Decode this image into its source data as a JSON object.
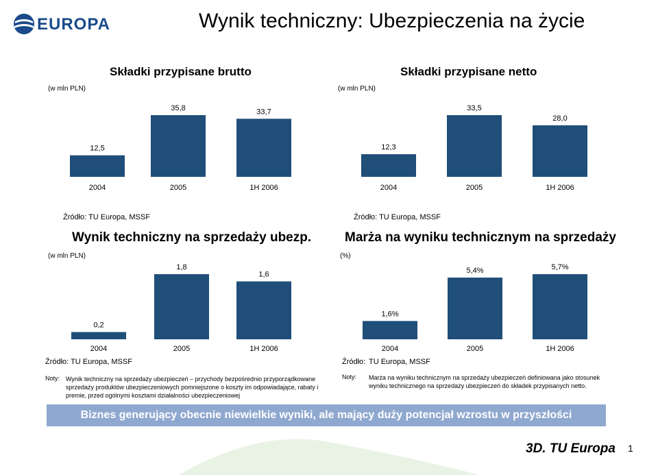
{
  "brand": {
    "name": "EUROPA",
    "color": "#1a4a8a"
  },
  "title": "Wynik techniczny: Ubezpieczenia na życie",
  "charts": [
    {
      "title": "Składki przypisane brutto",
      "unit": "(w mln PLN)",
      "source": "Źródło: TU Europa, MSSF",
      "label_offset": [
        0,
        0,
        0
      ]
    },
    {
      "title": "Składki przypisane netto",
      "unit": "(w mln PLN)",
      "source": "Źródło: TU Europa, MSSF"
    },
    {
      "title": "Wynik techniczny na sprzedaży ubezp.",
      "unit": "(w mln PLN)",
      "source": "Źródło: TU Europa, MSSF"
    },
    {
      "title": "Marża na wyniku technicznym na sprzedaży",
      "unit": "(%)",
      "source_label": "Źródło:",
      "source": "TU Europa, MSSF"
    }
  ],
  "chart_data": [
    {
      "type": "bar",
      "title": "Składki przypisane brutto",
      "unit": "(w mln PLN)",
      "categories": [
        "2004",
        "2005",
        "1H 2006"
      ],
      "values": [
        12.5,
        35.8,
        33.7
      ],
      "value_labels": [
        "12,5",
        "35,8",
        "33,7"
      ],
      "color": "#1f4e79"
    },
    {
      "type": "bar",
      "title": "Składki przypisane netto",
      "unit": "(w mln PLN)",
      "categories": [
        "2004",
        "2005",
        "1H 2006"
      ],
      "values": [
        12.3,
        33.5,
        28.0
      ],
      "value_labels": [
        "12,3",
        "33,5",
        "28,0"
      ],
      "color": "#1f4e79"
    },
    {
      "type": "bar",
      "title": "Wynik techniczny na sprzedaży ubezp.",
      "unit": "(w mln PLN)",
      "categories": [
        "2004",
        "2005",
        "1H 2006"
      ],
      "values": [
        0.2,
        1.8,
        1.6
      ],
      "value_labels": [
        "0,2",
        "1,8",
        "1,6"
      ],
      "color": "#1f4e79"
    },
    {
      "type": "bar",
      "title": "Marża na wyniku technicznym na sprzedaży",
      "unit": "(%)",
      "categories": [
        "2004",
        "2005",
        "1H 2006"
      ],
      "values": [
        1.6,
        5.4,
        5.7
      ],
      "value_labels": [
        "1,6%",
        "5,4%",
        "5,7%"
      ],
      "color": "#1f4e79"
    }
  ],
  "notes": {
    "left_label": "Noty:",
    "left_text": "Wynik techniczny na sprzedaży ubezpieczeń – przychody bezpośrednio przyporządkowane sprzedaży produktów ubezpieczeniowych pomniejszone o koszty im odpowiadające, rabaty i premie, przed ogólnymi kosztami działalności ubezpieczeniowej",
    "right_label": "Noty:",
    "right_text": "Marża na wyniku technicznym na sprzedaży ubezpieczeń definiowana jako stosunek wyniku technicznego na sprzedaży ubezpieczeń do składek przypisanych netto."
  },
  "banner": {
    "text": "Biznes generujący obecnie niewielkie wyniki, ale mający duży potencjał wzrostu w przyszłości",
    "color": "#8fa8cf"
  },
  "footer": {
    "tag": "3D. TU Europa",
    "page": "1"
  }
}
